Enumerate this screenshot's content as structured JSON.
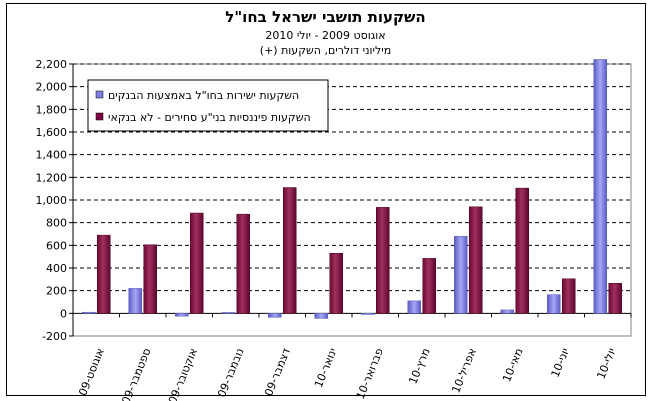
{
  "chart_data": {
    "type": "bar",
    "title": "השקעות תושבי ישראל בחו\"ל",
    "subtitle": "אוגוסט 2009 - יולי 2010",
    "unit_label": "מיליוני דולרים, השקעות (+)",
    "categories": [
      "אוגוסט-09",
      "ספטמבר-09",
      "אוקטובר-09",
      "נובמבר-09",
      "דצמבר-09",
      "ינואר-10",
      "פברואר-10",
      "מרץ-10",
      "אפריל-10",
      "מאי-10",
      "יוני-10",
      "יולי-10"
    ],
    "series": [
      {
        "name": "השקעות ישירות בחו\"ל באמצעות הבנקים",
        "color": "#7f7fe0",
        "values": [
          10,
          220,
          -25,
          8,
          -35,
          -45,
          -10,
          110,
          680,
          30,
          165,
          2240
        ]
      },
      {
        "name": "השקעות פיננסיות בני\"ע סחירים - לא בנקאי",
        "color": "#800040",
        "values": [
          690,
          605,
          885,
          875,
          1110,
          530,
          935,
          485,
          940,
          1105,
          305,
          265
        ]
      }
    ],
    "yticks": [
      -200,
      0,
      200,
      400,
      600,
      800,
      1000,
      1200,
      1400,
      1600,
      1800,
      2000,
      2200
    ],
    "ytick_labels": [
      "-200",
      "0",
      "200",
      "400",
      "600",
      "800",
      "1,000",
      "1,200",
      "1,400",
      "1,600",
      "1,800",
      "2,000",
      "2,200"
    ],
    "ylim": [
      -200,
      2200
    ],
    "grid": true,
    "legend_position": "top-left"
  }
}
